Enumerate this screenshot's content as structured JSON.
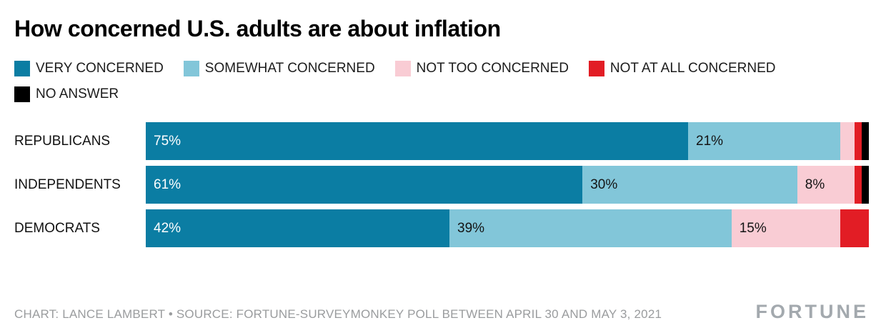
{
  "title": "How concerned U.S. adults are about inflation",
  "legend": {
    "items": [
      {
        "label": "VERY CONCERNED",
        "color": "#0b7da3"
      },
      {
        "label": "SOMEWHAT CONCERNED",
        "color": "#82c6d9"
      },
      {
        "label": "NOT TOO CONCERNED",
        "color": "#f9ccd4"
      },
      {
        "label": "NOT AT ALL CONCERNED",
        "color": "#e21d25"
      },
      {
        "label": "NO ANSWER",
        "color": "#000000"
      }
    ]
  },
  "chart_data": {
    "type": "bar",
    "orientation": "horizontal",
    "stacked": true,
    "title": "How concerned U.S. adults are about inflation",
    "categories": [
      "REPUBLICANS",
      "INDEPENDENTS",
      "DEMOCRATS"
    ],
    "series": [
      {
        "name": "VERY CONCERNED",
        "color": "#0b7da3",
        "values": [
          75,
          61,
          42
        ],
        "labels": [
          "75%",
          "61%",
          "42%"
        ],
        "label_color": "#ffffff"
      },
      {
        "name": "SOMEWHAT CONCERNED",
        "color": "#82c6d9",
        "values": [
          21,
          30,
          39
        ],
        "labels": [
          "21%",
          "30%",
          "39%"
        ],
        "label_color": "#141414"
      },
      {
        "name": "NOT TOO CONCERNED",
        "color": "#f9ccd4",
        "values": [
          2,
          8,
          15
        ],
        "labels": [
          "",
          "8%",
          "15%"
        ],
        "label_color": "#141414"
      },
      {
        "name": "NOT AT ALL CONCERNED",
        "color": "#e21d25",
        "values": [
          1,
          1,
          4
        ],
        "labels": [
          "",
          "",
          ""
        ],
        "label_color": "#ffffff"
      },
      {
        "name": "NO ANSWER",
        "color": "#000000",
        "values": [
          1,
          1,
          0
        ],
        "labels": [
          "",
          "",
          ""
        ],
        "label_color": "#ffffff"
      }
    ],
    "xlim": [
      0,
      100
    ],
    "grid": false,
    "legend_position": "top"
  },
  "footer": {
    "credit": "CHART: LANCE LAMBERT • SOURCE: FORTUNE-SURVEYMONKEY POLL BETWEEN APRIL 30 AND MAY 3, 2021",
    "brand": "FORTUNE"
  }
}
